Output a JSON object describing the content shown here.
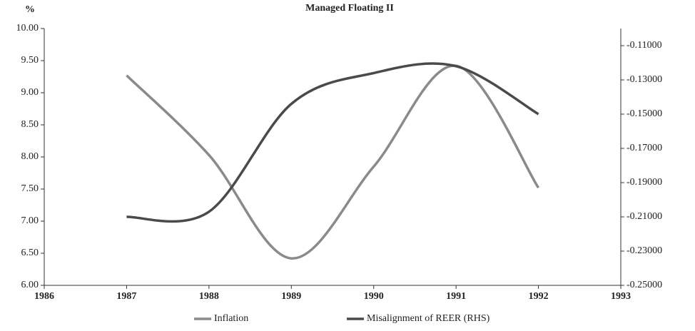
{
  "chart_data": {
    "type": "line",
    "title": "Managed Floating II",
    "y_label": "%",
    "x": [
      1987,
      1988,
      1989,
      1990,
      1991,
      1992
    ],
    "series": [
      {
        "name": "Inflation",
        "color": "#8a8a8a",
        "values": [
          9.27,
          8.03,
          6.42,
          7.85,
          9.42,
          7.52
        ]
      },
      {
        "name": "Misalignment of REER (RHS)",
        "color": "#4a4a4a",
        "axis": "y2",
        "values": [
          -0.21,
          -0.207,
          -0.144,
          -0.126,
          -0.122,
          -0.15
        ]
      }
    ],
    "xlim": [
      1986,
      1993
    ],
    "xticks": [
      1986,
      1987,
      1988,
      1989,
      1990,
      1991,
      1992,
      1993
    ],
    "ylim": [
      6,
      10
    ],
    "yticks": [
      {
        "value": 6,
        "label": "6.00"
      },
      {
        "value": 6.5,
        "label": "6.50"
      },
      {
        "value": 7,
        "label": "7.00"
      },
      {
        "value": 7.5,
        "label": "7.50"
      },
      {
        "value": 8,
        "label": "8.00"
      },
      {
        "value": 8.5,
        "label": "8.50"
      },
      {
        "value": 9,
        "label": "9.00"
      },
      {
        "value": 9.5,
        "label": "9.50"
      },
      {
        "value": 10,
        "label": "10.00"
      }
    ],
    "y2lim": [
      -0.25,
      -0.1
    ],
    "y2ticks": [
      {
        "value": -0.25,
        "label": "-0.25000"
      },
      {
        "value": -0.23,
        "label": "-0.23000"
      },
      {
        "value": -0.21,
        "label": "-0.21000"
      },
      {
        "value": -0.19,
        "label": "-0.19000"
      },
      {
        "value": -0.17,
        "label": "-0.17000"
      },
      {
        "value": -0.15,
        "label": "-0.15000"
      },
      {
        "value": -0.13,
        "label": "-0.13000"
      },
      {
        "value": -0.11,
        "label": "-0.11000"
      }
    ],
    "legend": "bottom",
    "grid": false
  }
}
